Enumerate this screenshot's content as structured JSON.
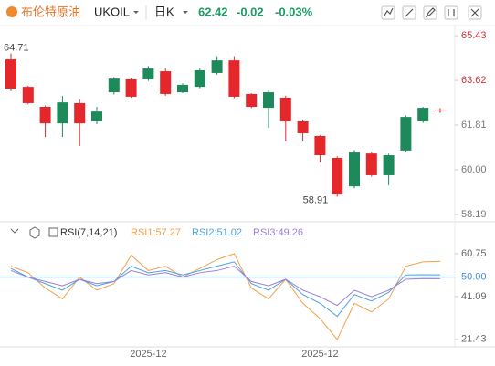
{
  "header": {
    "symbol_name": "布伦特原油",
    "symbol": "UKOIL",
    "period": "日K",
    "price": "62.42",
    "change": "-0.02",
    "change_pct": "-0.03%"
  },
  "chart_data": [
    {
      "type": "candlestick",
      "categories": [
        null,
        null,
        null,
        null,
        null,
        null,
        null,
        null,
        "2025-12",
        null,
        null,
        null,
        null,
        null,
        null,
        null,
        null,
        null,
        "2025-12",
        null,
        null,
        null,
        null,
        null,
        null,
        null
      ],
      "open": [
        64.47,
        63.36,
        62.55,
        61.88,
        62.7,
        61.96,
        63.14,
        63.66,
        63.66,
        63.99,
        63.14,
        63.36,
        63.92,
        64.43,
        63.07,
        62.51,
        62.92,
        61.96,
        61.37,
        60.48,
        59.33,
        60.66,
        59.78,
        60.78,
        61.96,
        62.44
      ],
      "high": [
        64.71,
        63.4,
        62.6,
        62.99,
        62.85,
        62.55,
        63.75,
        63.72,
        64.2,
        64.1,
        63.5,
        64.1,
        64.6,
        64.6,
        63.1,
        63.2,
        63.0,
        62.0,
        61.4,
        60.55,
        60.8,
        60.72,
        60.65,
        62.2,
        62.55,
        62.5
      ],
      "low": [
        63.18,
        62.65,
        61.33,
        61.33,
        60.96,
        61.85,
        63.05,
        62.92,
        63.6,
        63.0,
        63.1,
        63.3,
        63.85,
        62.9,
        62.5,
        61.7,
        61.15,
        61.15,
        60.3,
        58.91,
        59.25,
        59.72,
        59.37,
        60.7,
        61.9,
        62.3
      ],
      "close": [
        63.29,
        62.7,
        61.88,
        62.73,
        61.88,
        62.36,
        63.69,
        62.96,
        64.1,
        63.07,
        63.44,
        64.03,
        64.43,
        62.96,
        62.55,
        63.14,
        61.96,
        61.48,
        60.59,
        59.0,
        60.7,
        59.78,
        60.59,
        62.14,
        62.51,
        62.42
      ],
      "max_label": 64.71,
      "min_label": 58.91,
      "up_color": "#1e8a5c",
      "down_color": "#e5262b",
      "ylim": [
        57.93,
        65.84
      ],
      "yticks": [
        65.43,
        63.62,
        61.81,
        {
          "value": 60,
          "label": "60.00"
        },
        58.19
      ]
    },
    {
      "type": "line",
      "indicator": "RSI(7,14,21)",
      "series": [
        {
          "name": "RSI1:57.27",
          "color": "#f2a04b",
          "values": [
            55,
            52,
            45,
            40,
            50,
            44,
            47,
            60,
            53,
            55,
            50,
            54,
            58,
            60.75,
            45,
            40,
            49,
            38,
            31,
            21.43,
            38,
            34,
            40,
            55,
            57,
            57.27
          ]
        },
        {
          "name": "RSI2:51.02",
          "color": "#4aa3df",
          "values": [
            54,
            50,
            47,
            44,
            49,
            46,
            48,
            55,
            52,
            53,
            51,
            53,
            55,
            57,
            47,
            44,
            49,
            42,
            38,
            32,
            42,
            39,
            43,
            51,
            51.1,
            51.02
          ]
        },
        {
          "name": "RSI3:49.26",
          "color": "#9b7fd6",
          "values": [
            53,
            50,
            48,
            46,
            49,
            47,
            48,
            53,
            51,
            52,
            50,
            52,
            53,
            55,
            48,
            46,
            49,
            44,
            41,
            37,
            44,
            41,
            44,
            49,
            49.3,
            49.26
          ]
        }
      ],
      "reference_line": 50,
      "reference_color": "#3b8fe0",
      "ylim": [
        18,
        67
      ],
      "yticks": [
        60.75,
        {
          "value": 50,
          "label": "50.00"
        },
        41.09,
        21.43
      ]
    }
  ]
}
